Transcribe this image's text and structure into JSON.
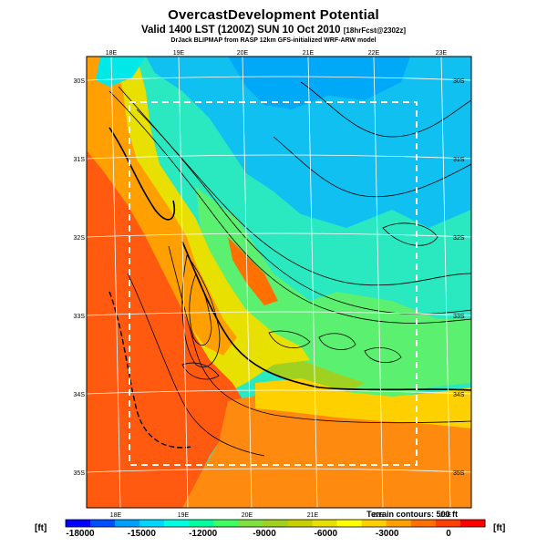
{
  "header": {
    "title": "OvercastDevelopment Potential",
    "subtitle_main": "Valid 1400 LST (1200Z) SUN 10 Oct 2010",
    "subtitle_tag": "[18hrFcst@2302z]",
    "model_line": "DrJack BLIPMAP from RASP 12km GFS-initialized WRF-ARW model"
  },
  "map": {
    "lon_labels": [
      "18E",
      "19E",
      "20E",
      "21E",
      "22E",
      "23E"
    ],
    "lat_labels": [
      "30S",
      "31S",
      "32S",
      "33S",
      "34S",
      "35S"
    ],
    "colors": {
      "frame": "#000000",
      "grid": "#ffffff",
      "subdomain_box": "#ffffff"
    }
  },
  "contour_note": "Terrain contours: 500 ft",
  "colorbar": {
    "unit_left": "[ft]",
    "unit_right": "[ft]",
    "tick_labels": [
      "-18000",
      "-15000",
      "-12000",
      "-9000",
      "-6000",
      "-3000",
      "0"
    ],
    "colors": [
      "#0000ff",
      "#0050ff",
      "#00a0ff",
      "#00d8ff",
      "#00ffe0",
      "#00ffa0",
      "#40ff60",
      "#80e040",
      "#a0d020",
      "#c8d000",
      "#e8e000",
      "#ffff00",
      "#ffd000",
      "#ffa000",
      "#ff7000",
      "#ff4000",
      "#ff0000"
    ]
  }
}
